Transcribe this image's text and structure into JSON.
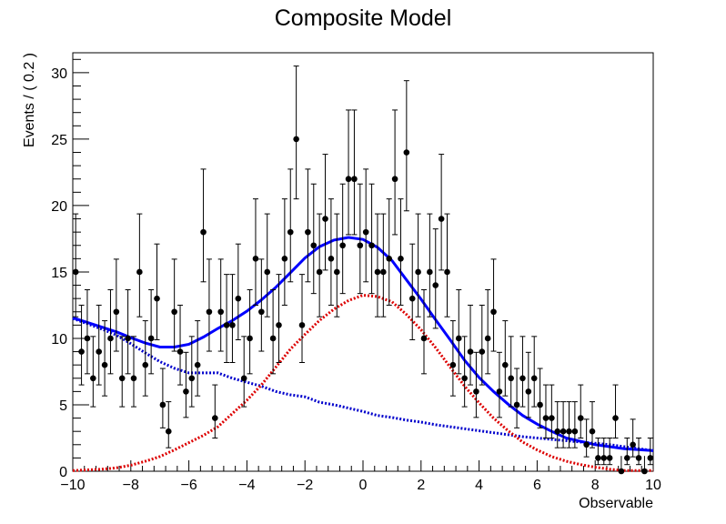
{
  "chart_data": {
    "type": "scatter",
    "title": "Composite Model",
    "xlabel": "Observable",
    "ylabel": "Events / ( 0.2 )",
    "xlim": [
      -10,
      10
    ],
    "ylim": [
      0,
      31.5
    ],
    "xticks": [
      -10,
      -8,
      -6,
      -4,
      -2,
      0,
      2,
      4,
      6,
      8,
      10
    ],
    "yticks": [
      0,
      5,
      10,
      15,
      20,
      25,
      30
    ],
    "grid": false,
    "legend": "none",
    "colors": {
      "data": "#000000",
      "total": "#0000ff",
      "signal": "#dd0000",
      "background": "#0000cc"
    },
    "points": {
      "x": [
        -9.9,
        -9.7,
        -9.5,
        -9.3,
        -9.1,
        -8.9,
        -8.7,
        -8.5,
        -8.3,
        -8.1,
        -7.9,
        -7.7,
        -7.5,
        -7.3,
        -7.1,
        -6.9,
        -6.7,
        -6.5,
        -6.3,
        -6.1,
        -5.9,
        -5.7,
        -5.5,
        -5.3,
        -5.1,
        -4.9,
        -4.7,
        -4.5,
        -4.3,
        -4.1,
        -3.9,
        -3.7,
        -3.5,
        -3.3,
        -3.1,
        -2.9,
        -2.7,
        -2.5,
        -2.3,
        -2.1,
        -1.9,
        -1.7,
        -1.5,
        -1.3,
        -1.1,
        -0.9,
        -0.7,
        -0.5,
        -0.3,
        -0.1,
        0.1,
        0.3,
        0.5,
        0.7,
        0.9,
        1.1,
        1.3,
        1.5,
        1.7,
        1.9,
        2.1,
        2.3,
        2.5,
        2.7,
        2.9,
        3.1,
        3.3,
        3.5,
        3.7,
        3.9,
        4.1,
        4.3,
        4.5,
        4.7,
        4.9,
        5.1,
        5.3,
        5.5,
        5.7,
        5.9,
        6.1,
        6.3,
        6.5,
        6.7,
        6.9,
        7.1,
        7.3,
        7.5,
        7.7,
        7.9,
        8.1,
        8.3,
        8.5,
        8.7,
        8.9,
        9.1,
        9.3,
        9.5,
        9.7,
        9.9
      ],
      "y": [
        15,
        9,
        10,
        7,
        9,
        8,
        10,
        12,
        7,
        10,
        7,
        15,
        8,
        10,
        13,
        5,
        3,
        12,
        9,
        6,
        7,
        8,
        18,
        12,
        4,
        12,
        11,
        11,
        13,
        7,
        10,
        16,
        12,
        15,
        10,
        11,
        16,
        18,
        25,
        11,
        18,
        17,
        15,
        19,
        16,
        15,
        17,
        22,
        22,
        17,
        18,
        17,
        15,
        15,
        16,
        22,
        16,
        24,
        13,
        15,
        10,
        15,
        14,
        19,
        15,
        8,
        10,
        7,
        9,
        6,
        9,
        10,
        12,
        6,
        8,
        7,
        5,
        7,
        6,
        7,
        5,
        4,
        4,
        3,
        3,
        3,
        3,
        4,
        2,
        3,
        1,
        1,
        1,
        4,
        0,
        1,
        2,
        1,
        0,
        1
      ]
    },
    "curves": {
      "x": [
        -10,
        -9.5,
        -9,
        -8.5,
        -8,
        -7.5,
        -7,
        -6.5,
        -6,
        -5.5,
        -5,
        -4.5,
        -4,
        -3.5,
        -3,
        -2.5,
        -2,
        -1.5,
        -1,
        -0.5,
        0,
        0.5,
        1,
        1.5,
        2,
        2.5,
        3,
        3.5,
        4,
        4.5,
        5,
        5.5,
        6,
        6.5,
        7,
        7.5,
        8,
        8.5,
        9,
        9.5,
        10
      ],
      "total": [
        11.55,
        11.2,
        10.85,
        10.5,
        10.05,
        9.65,
        9.35,
        9.35,
        9.55,
        10.1,
        10.75,
        11.35,
        12.05,
        12.9,
        13.85,
        14.95,
        16.05,
        16.9,
        17.4,
        17.6,
        17.45,
        16.85,
        15.85,
        14.4,
        12.95,
        11.4,
        9.9,
        8.35,
        7.05,
        6.0,
        5.05,
        4.2,
        3.55,
        3.0,
        2.5,
        2.25,
        2.0,
        1.85,
        1.7,
        1.62,
        1.55
      ],
      "signal": [
        0.05,
        0.1,
        0.15,
        0.25,
        0.45,
        0.75,
        1.1,
        1.6,
        2.15,
        2.7,
        3.35,
        4.35,
        5.35,
        6.5,
        7.85,
        9.2,
        10.3,
        11.35,
        12.2,
        12.85,
        13.25,
        13.15,
        12.75,
        11.8,
        10.65,
        9.3,
        7.85,
        6.4,
        5.15,
        4.0,
        3.05,
        2.2,
        1.6,
        1.1,
        0.75,
        0.5,
        0.3,
        0.15,
        0.05,
        0.05,
        0.05
      ],
      "background": [
        11.5,
        11.1,
        10.7,
        10.25,
        9.6,
        8.9,
        8.25,
        7.75,
        7.4,
        7.4,
        7.4,
        7.0,
        6.7,
        6.4,
        6.0,
        5.75,
        5.6,
        5.2,
        5.0,
        4.75,
        4.5,
        4.2,
        4.05,
        3.85,
        3.7,
        3.5,
        3.35,
        3.2,
        3.05,
        2.9,
        2.75,
        2.6,
        2.5,
        2.4,
        2.3,
        2.2,
        2.1,
        2.0,
        1.85,
        1.7,
        1.55
      ]
    }
  }
}
